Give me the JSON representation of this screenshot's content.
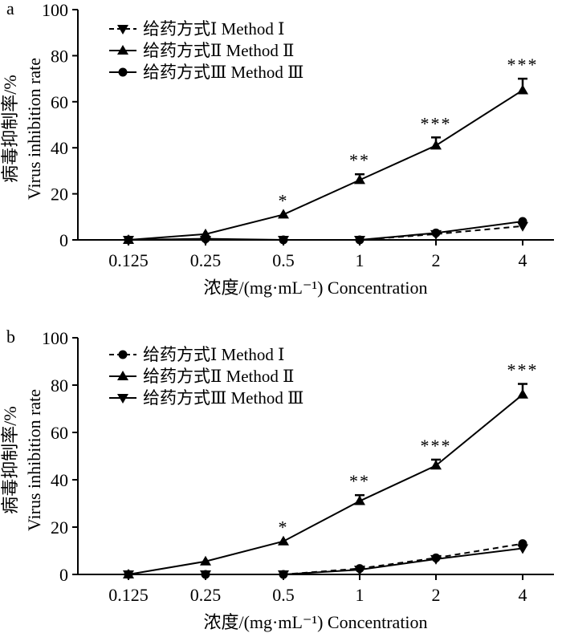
{
  "chart_data": [
    {
      "type": "line",
      "panel_label": "a",
      "categories": [
        "0.125",
        "0.25",
        "0.5",
        "1",
        "2",
        "4"
      ],
      "xlabel": "浓度/(mg·mL⁻¹)  Concentration",
      "ylabel_cn": "病毒抑制率/%",
      "ylabel_en": "Virus inhibition rate",
      "ylim": [
        0,
        100
      ],
      "yticks": [
        "0",
        "20",
        "40",
        "60",
        "80",
        "100"
      ],
      "series": [
        {
          "name": "给药方式Ⅰ Method Ⅰ",
          "marker": "triangle-down",
          "line": "dashed",
          "values": [
            0,
            0,
            0,
            0,
            2.5,
            6
          ],
          "errors": [
            0,
            0,
            0,
            0,
            0,
            0
          ]
        },
        {
          "name": "给药方式Ⅱ Method Ⅱ",
          "marker": "triangle-up",
          "line": "solid",
          "values": [
            0,
            2.5,
            11,
            26,
            41,
            65
          ],
          "errors": [
            0,
            0,
            0,
            2.5,
            3.5,
            5
          ]
        },
        {
          "name": "给药方式Ⅲ Method Ⅲ",
          "marker": "circle",
          "line": "solid",
          "values": [
            0,
            0.5,
            0,
            0,
            3,
            8
          ],
          "errors": [
            0,
            0,
            0,
            0,
            0,
            0
          ]
        }
      ],
      "annotations": [
        {
          "category": "0.5",
          "text": "*"
        },
        {
          "category": "1",
          "text": "**"
        },
        {
          "category": "2",
          "text": "***"
        },
        {
          "category": "4",
          "text": "***"
        }
      ]
    },
    {
      "type": "line",
      "panel_label": "b",
      "categories": [
        "0.125",
        "0.25",
        "0.5",
        "1",
        "2",
        "4"
      ],
      "xlabel": "浓度/(mg·mL⁻¹)  Concentration",
      "ylabel_cn": "病毒抑制率/%",
      "ylabel_en": "Virus inhibition rate",
      "ylim": [
        0,
        100
      ],
      "yticks": [
        "0",
        "20",
        "40",
        "60",
        "80",
        "100"
      ],
      "series": [
        {
          "name": "给药方式Ⅰ Method Ⅰ",
          "marker": "circle",
          "line": "dashed",
          "values": [
            0,
            0,
            0,
            2.5,
            7,
            13
          ],
          "errors": [
            0,
            0,
            0,
            0,
            0,
            0
          ]
        },
        {
          "name": "给药方式Ⅱ Method Ⅱ",
          "marker": "triangle-up",
          "line": "solid",
          "values": [
            0,
            5.5,
            14,
            31,
            46,
            76
          ],
          "errors": [
            0,
            0,
            0,
            2.5,
            2.5,
            4.5
          ]
        },
        {
          "name": "给药方式Ⅲ Method Ⅲ",
          "marker": "triangle-down",
          "line": "solid",
          "values": [
            0,
            0,
            0,
            2,
            6.5,
            11
          ],
          "errors": [
            0,
            0,
            0,
            0,
            0,
            0
          ]
        }
      ],
      "annotations": [
        {
          "category": "0.5",
          "text": "*"
        },
        {
          "category": "1",
          "text": "**"
        },
        {
          "category": "2",
          "text": "***"
        },
        {
          "category": "4",
          "text": "***"
        }
      ]
    }
  ]
}
